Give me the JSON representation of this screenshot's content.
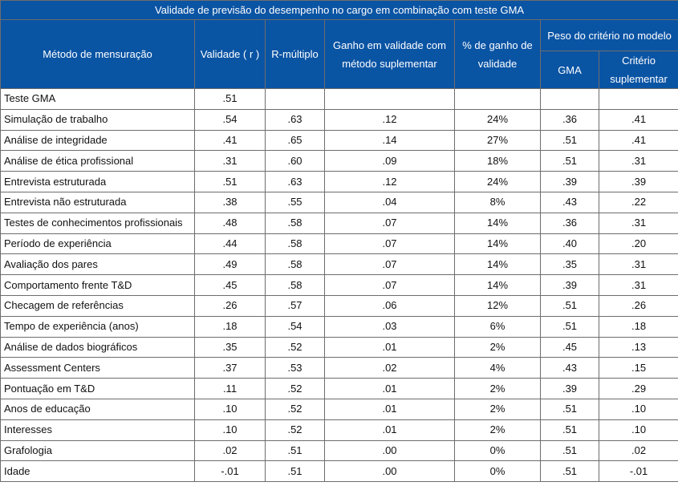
{
  "table": {
    "title": "Validade de previsão do desempenho no cargo em combinação com teste GMA",
    "headers": {
      "method": "Método de mensuração",
      "validity": "Validade ( r )",
      "r_multiple": "R-múltiplo",
      "gain": "Ganho em validade com método suplementar",
      "gain_pct": "% de ganho de validade",
      "weight_group": "Peso do critério no modelo",
      "gma": "GMA",
      "supp": "Critério suplementar"
    },
    "rows": [
      {
        "method": "Teste GMA",
        "validity": ".51",
        "r_multiple": "",
        "gain": "",
        "gain_pct": "",
        "gma": "",
        "supp": ""
      },
      {
        "method": "Simulação de trabalho",
        "validity": ".54",
        "r_multiple": ".63",
        "gain": ".12",
        "gain_pct": "24%",
        "gma": ".36",
        "supp": ".41"
      },
      {
        "method": "Análise de integridade",
        "validity": ".41",
        "r_multiple": ".65",
        "gain": ".14",
        "gain_pct": "27%",
        "gma": ".51",
        "supp": ".41"
      },
      {
        "method": "Análise de ética profissional",
        "validity": ".31",
        "r_multiple": ".60",
        "gain": ".09",
        "gain_pct": "18%",
        "gma": ".51",
        "supp": ".31"
      },
      {
        "method": "Entrevista estruturada",
        "validity": ".51",
        "r_multiple": ".63",
        "gain": ".12",
        "gain_pct": "24%",
        "gma": ".39",
        "supp": ".39"
      },
      {
        "method": "Entrevista não estruturada",
        "validity": ".38",
        "r_multiple": ".55",
        "gain": ".04",
        "gain_pct": "8%",
        "gma": ".43",
        "supp": ".22"
      },
      {
        "method": "Testes de conhecimentos profissionais",
        "validity": ".48",
        "r_multiple": ".58",
        "gain": ".07",
        "gain_pct": "14%",
        "gma": ".36",
        "supp": ".31"
      },
      {
        "method": "Período de experiência",
        "validity": ".44",
        "r_multiple": ".58",
        "gain": ".07",
        "gain_pct": "14%",
        "gma": ".40",
        "supp": ".20"
      },
      {
        "method": "Avaliação dos pares",
        "validity": ".49",
        "r_multiple": ".58",
        "gain": ".07",
        "gain_pct": "14%",
        "gma": ".35",
        "supp": ".31"
      },
      {
        "method": "Comportamento frente T&D",
        "validity": ".45",
        "r_multiple": ".58",
        "gain": ".07",
        "gain_pct": "14%",
        "gma": ".39",
        "supp": ".31"
      },
      {
        "method": "Checagem de referências",
        "validity": ".26",
        "r_multiple": ".57",
        "gain": ".06",
        "gain_pct": "12%",
        "gma": ".51",
        "supp": ".26"
      },
      {
        "method": "Tempo de experiência (anos)",
        "validity": ".18",
        "r_multiple": ".54",
        "gain": ".03",
        "gain_pct": "6%",
        "gma": ".51",
        "supp": ".18"
      },
      {
        "method": "Análise de dados biográficos",
        "validity": ".35",
        "r_multiple": ".52",
        "gain": ".01",
        "gain_pct": "2%",
        "gma": ".45",
        "supp": ".13"
      },
      {
        "method": "Assessment Centers",
        "validity": ".37",
        "r_multiple": ".53",
        "gain": ".02",
        "gain_pct": "4%",
        "gma": ".43",
        "supp": ".15"
      },
      {
        "method": "Pontuação em T&D",
        "validity": ".11",
        "r_multiple": ".52",
        "gain": ".01",
        "gain_pct": "2%",
        "gma": ".39",
        "supp": ".29"
      },
      {
        "method": "Anos de educação",
        "validity": ".10",
        "r_multiple": ".52",
        "gain": ".01",
        "gain_pct": "2%",
        "gma": ".51",
        "supp": ".10"
      },
      {
        "method": "Interesses",
        "validity": ".10",
        "r_multiple": ".52",
        "gain": ".01",
        "gain_pct": "2%",
        "gma": ".51",
        "supp": ".10"
      },
      {
        "method": "Grafologia",
        "validity": ".02",
        "r_multiple": ".51",
        "gain": ".00",
        "gain_pct": "0%",
        "gma": ".51",
        "supp": ".02"
      },
      {
        "method": "Idade",
        "validity": "-.01",
        "r_multiple": ".51",
        "gain": ".00",
        "gain_pct": "0%",
        "gma": ".51",
        "supp": "-.01"
      }
    ]
  }
}
